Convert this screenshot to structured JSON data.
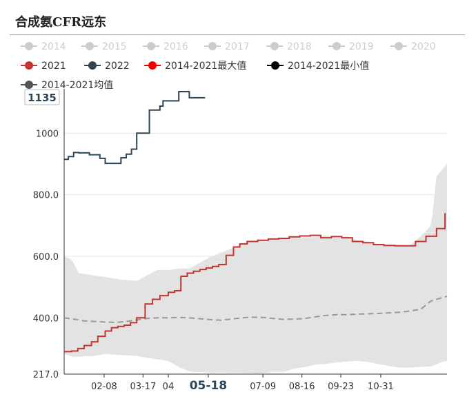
{
  "page": {
    "title": "合成氨CFR远东"
  },
  "chart_data": {
    "type": "line",
    "title": "合成氨CFR远东",
    "ylim": [
      217,
      1135
    ],
    "y_ticks": [
      217.0,
      400.0,
      600.0,
      800.0,
      1000
    ],
    "y_tick_labels": [
      "217.0",
      "400.0",
      "600.0",
      "800.0",
      "1000"
    ],
    "y_max_label": "1135",
    "x_ticks": [
      "02-08",
      "03-17",
      "04",
      "05-18",
      "07-09",
      "08-16",
      "09-23",
      "10-31"
    ],
    "x_highlight": "05-18",
    "grid": true,
    "legend_position": "top",
    "legend": [
      {
        "name": "2014",
        "color": "#cccccc",
        "active": false
      },
      {
        "name": "2015",
        "color": "#cccccc",
        "active": false
      },
      {
        "name": "2016",
        "color": "#cccccc",
        "active": false
      },
      {
        "name": "2017",
        "color": "#cccccc",
        "active": false
      },
      {
        "name": "2018",
        "color": "#cccccc",
        "active": false
      },
      {
        "name": "2019",
        "color": "#cccccc",
        "active": false
      },
      {
        "name": "2020",
        "color": "#cccccc",
        "active": false
      },
      {
        "name": "2021",
        "color": "#c23531",
        "active": true
      },
      {
        "name": "2022",
        "color": "#2f4554",
        "active": true
      },
      {
        "name": "2014-2021最大值",
        "color": "#ee0000",
        "active": true
      },
      {
        "name": "2014-2021最小值",
        "color": "#000000",
        "active": true
      },
      {
        "name": "2014-2021均值",
        "color": "#555555",
        "active": true
      }
    ],
    "series": [
      {
        "name": "2021",
        "color": "#c23531",
        "x": [
          1,
          8,
          14,
          20,
          27,
          33,
          40,
          46,
          52,
          58,
          64,
          70,
          78,
          85,
          92,
          100,
          106,
          112,
          118,
          124,
          130,
          136,
          142,
          148,
          155,
          162,
          168,
          175,
          185,
          195,
          205,
          215,
          225,
          235,
          245,
          255,
          265,
          275,
          285,
          295,
          305,
          315,
          325,
          335,
          345,
          355,
          363
        ],
        "values": [
          290,
          292,
          300,
          310,
          322,
          340,
          357,
          368,
          372,
          376,
          384,
          400,
          445,
          460,
          472,
          483,
          488,
          535,
          545,
          551,
          557,
          562,
          567,
          573,
          603,
          630,
          640,
          648,
          652,
          656,
          658,
          663,
          666,
          668,
          660,
          664,
          660,
          648,
          644,
          638,
          635,
          634,
          634,
          648,
          665,
          690,
          740
        ]
      },
      {
        "name": "2022",
        "color": "#2f4554",
        "x": [
          1,
          5,
          10,
          15,
          25,
          35,
          40,
          45,
          55,
          60,
          65,
          70,
          75,
          82,
          88,
          92,
          95,
          100,
          110,
          115,
          120,
          128,
          130,
          135
        ],
        "values": [
          915,
          924,
          937,
          936,
          930,
          918,
          902,
          902,
          920,
          932,
          948,
          1000,
          1000,
          1075,
          1075,
          1088,
          1105,
          1105,
          1135,
          1135,
          1115,
          1115,
          1115,
          1115
        ]
      },
      {
        "name": "2014-2021均值",
        "color": "#999999",
        "x": [
          1,
          10,
          20,
          30,
          40,
          50,
          60,
          70,
          80,
          90,
          100,
          110,
          120,
          130,
          140,
          150,
          160,
          170,
          180,
          190,
          200,
          210,
          220,
          230,
          240,
          250,
          260,
          270,
          280,
          290,
          300,
          310,
          320,
          330,
          340,
          350,
          360,
          365
        ],
        "values": [
          400,
          396,
          390,
          388,
          386,
          385,
          388,
          393,
          398,
          400,
          400,
          401,
          400,
          397,
          394,
          392,
          396,
          400,
          402,
          401,
          398,
          395,
          396,
          398,
          403,
          408,
          410,
          410,
          412,
          413,
          414,
          416,
          418,
          422,
          428,
          455,
          465,
          470
        ]
      },
      {
        "name": "2014-2021最大值",
        "color": "#dddddd",
        "x": [
          1,
          8,
          15,
          25,
          45,
          55,
          70,
          90,
          100,
          110,
          120,
          140,
          160,
          170,
          180,
          200,
          210,
          220,
          230,
          240,
          250,
          260,
          270,
          280,
          290,
          300,
          310,
          320,
          330,
          340,
          350,
          355,
          365
        ],
        "values": [
          600,
          590,
          545,
          540,
          530,
          524,
          520,
          556,
          555,
          560,
          560,
          598,
          625,
          640,
          650,
          655,
          660,
          662,
          662,
          662,
          668,
          660,
          665,
          650,
          648,
          638,
          637,
          636,
          635,
          665,
          700,
          860,
          900
        ]
      },
      {
        "name": "2014-2021最小值",
        "color": "#dddddd",
        "x": [
          1,
          10,
          20,
          30,
          40,
          50,
          60,
          70,
          80,
          90,
          100,
          110,
          120,
          130,
          140,
          150,
          160,
          170,
          180,
          190,
          200,
          210,
          220,
          230,
          240,
          250,
          260,
          270,
          280,
          290,
          300,
          310,
          320,
          330,
          340,
          350,
          360,
          365
        ],
        "values": [
          283,
          272,
          275,
          276,
          283,
          280,
          278,
          276,
          270,
          265,
          260,
          240,
          225,
          224,
          222,
          223,
          222,
          222,
          220,
          220,
          225,
          224,
          235,
          240,
          248,
          250,
          255,
          258,
          260,
          256,
          250,
          243,
          238,
          238,
          240,
          242,
          256,
          260
        ]
      }
    ]
  }
}
